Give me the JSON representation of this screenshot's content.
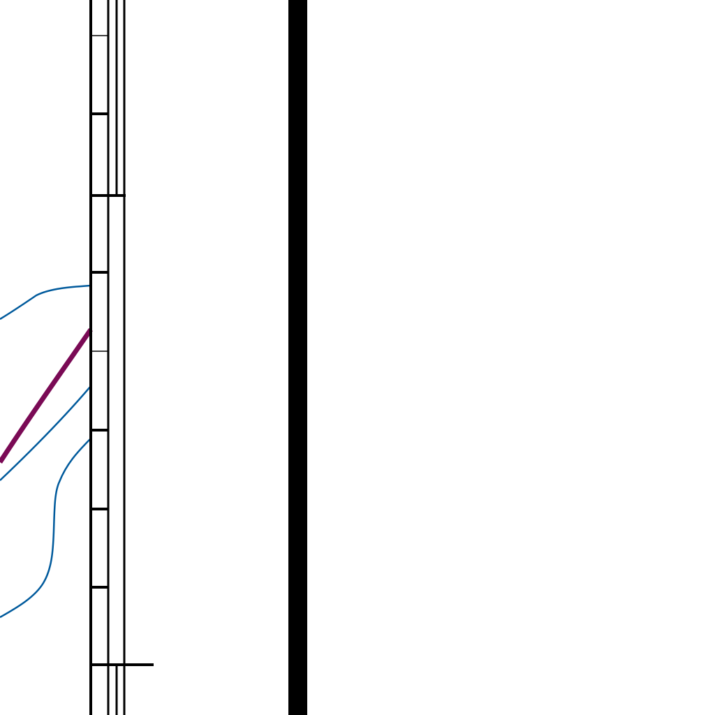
{
  "map": {
    "colors": {
      "background": "#ffffff",
      "ink": "#000000",
      "contour": "#005a9c",
      "route": "#7a0a55"
    },
    "features": [
      {
        "kind": "neatline-double",
        "style": "ink"
      },
      {
        "kind": "scale-ticks",
        "style": "ink"
      },
      {
        "kind": "heavy-boundary-bar",
        "style": "ink"
      },
      {
        "kind": "contour-lines",
        "count": 3,
        "style": "contour"
      },
      {
        "kind": "route-line",
        "count": 1,
        "style": "route"
      }
    ]
  }
}
